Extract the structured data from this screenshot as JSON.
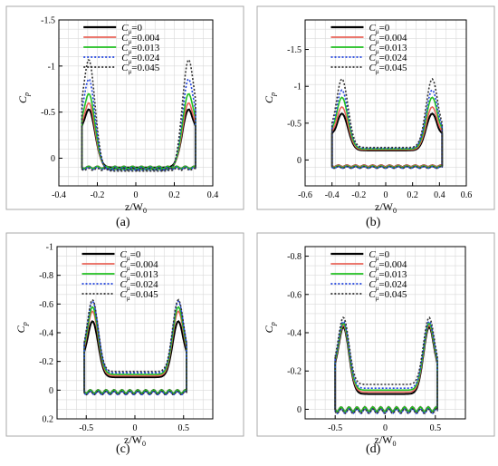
{
  "figure": {
    "captions": [
      "(a)",
      "(b)",
      "(c)",
      "(d)"
    ]
  },
  "legend": {
    "entries": [
      "C_μ=0",
      "C_μ=0.004",
      "C_μ=0.013",
      "C_μ=0.024",
      "C_μ=0.045"
    ],
    "colors": [
      "#000000",
      "#e8645a",
      "#22c022",
      "#2244dd",
      "#333333"
    ],
    "styles": [
      "solid",
      "solid",
      "solid",
      "dotted",
      "dotted"
    ]
  },
  "chart_data": [
    {
      "type": "line",
      "caption": "(a)",
      "xlabel": "z/W0",
      "ylabel": "Cp",
      "xlim": [
        -0.4,
        0.4
      ],
      "ylim": [
        0.3,
        -1.5
      ],
      "y_inverted": true,
      "xticks": [
        -0.4,
        -0.2,
        0,
        0.2,
        0.4
      ],
      "yticks": [
        -1.5,
        -1,
        -0.5,
        0
      ],
      "ytick_labels": [
        "-1.5",
        "-1",
        "-0.5",
        "0"
      ],
      "xtick_labels": [
        "-0.4",
        "-0.2",
        "0",
        "0.2",
        "0.4"
      ],
      "grid": true,
      "edges": [
        -0.28,
        0.31
      ],
      "suction_peaks": [
        -0.53,
        -0.6,
        -0.7,
        -0.86,
        -1.07
      ],
      "peak_offset": 0.06,
      "wing_end": -0.35,
      "mid_plateau": [
        0.1,
        0.12,
        0.12,
        0.13,
        0.14
      ],
      "lower_surface": [
        0.1,
        0.1,
        0.1,
        0.11,
        0.12
      ],
      "legend_position": "top-center"
    },
    {
      "type": "line",
      "caption": "(b)",
      "xlabel": "z/W0",
      "ylabel": "Cp",
      "xlim": [
        -0.6,
        0.6
      ],
      "ylim": [
        0.35,
        -1.9
      ],
      "y_inverted": true,
      "xticks": [
        -0.6,
        -0.4,
        -0.2,
        0,
        0.2,
        0.4,
        0.6
      ],
      "yticks": [
        -1.5,
        -1,
        -0.5,
        0
      ],
      "ytick_labels": [
        "-1.5",
        "-1",
        "-0.5",
        "0"
      ],
      "xtick_labels": [
        "-0.6",
        "-0.4",
        "-0.2",
        "0",
        "0.2",
        "0.4",
        "0.6"
      ],
      "grid": true,
      "edges": [
        -0.4,
        0.42
      ],
      "suction_peaks": [
        -0.63,
        -0.72,
        -0.85,
        -0.95,
        -1.1
      ],
      "peak_offset": 0.09,
      "wing_end": -0.4,
      "mid_plateau": [
        -0.13,
        -0.14,
        -0.15,
        -0.16,
        -0.17
      ],
      "lower_surface": [
        0.08,
        0.08,
        0.09,
        0.1,
        0.1
      ],
      "legend_position": "top-center"
    },
    {
      "type": "line",
      "caption": "(c)",
      "xlabel": "z/W0",
      "ylabel": "Cp",
      "xlim": [
        -0.8,
        0.8
      ],
      "ylim": [
        0.2,
        -1.0
      ],
      "y_inverted": true,
      "xticks": [
        -0.5,
        0,
        0.5
      ],
      "yticks": [
        -1,
        -0.8,
        -0.6,
        -0.4,
        -0.2,
        0,
        0.2
      ],
      "ytick_labels": [
        "-1",
        "-0.8",
        "-0.6",
        "-0.4",
        "-0.2",
        "0",
        "0.2"
      ],
      "xtick_labels": [
        "-0.5",
        "0",
        "0.5"
      ],
      "grid": true,
      "edges": [
        -0.52,
        0.53
      ],
      "suction_peaks": [
        -0.48,
        -0.55,
        -0.58,
        -0.62,
        -0.63
      ],
      "peak_offset": 0.08,
      "wing_end": -0.22,
      "mid_plateau": [
        -0.09,
        -0.1,
        -0.11,
        -0.12,
        -0.13
      ],
      "lower_surface": [
        0.01,
        0.01,
        0.01,
        0.02,
        0.02
      ],
      "legend_position": "top-center"
    },
    {
      "type": "line",
      "caption": "(d)",
      "xlabel": "z/W0",
      "ylabel": "Cp",
      "xlim": [
        -0.8,
        0.8
      ],
      "ylim": [
        0.05,
        -0.85
      ],
      "y_inverted": true,
      "xticks": [
        -0.5,
        0,
        0.5
      ],
      "yticks": [
        -0.8,
        -0.6,
        -0.4,
        -0.2,
        0
      ],
      "ytick_labels": [
        "-0.8",
        "-0.6",
        "-0.4",
        "-0.2",
        "0"
      ],
      "xtick_labels": [
        "-0.5",
        "0",
        "0.5"
      ],
      "grid": true,
      "edges": [
        -0.5,
        0.52
      ],
      "suction_peaks": [
        -0.43,
        -0.44,
        -0.45,
        -0.46,
        -0.48
      ],
      "peak_offset": 0.08,
      "wing_end": -0.2,
      "mid_plateau": [
        -0.08,
        -0.09,
        -0.1,
        -0.11,
        -0.13
      ],
      "lower_surface": [
        0.0,
        0.0,
        0.0,
        0.01,
        0.01
      ],
      "legend_position": "top-center"
    }
  ]
}
